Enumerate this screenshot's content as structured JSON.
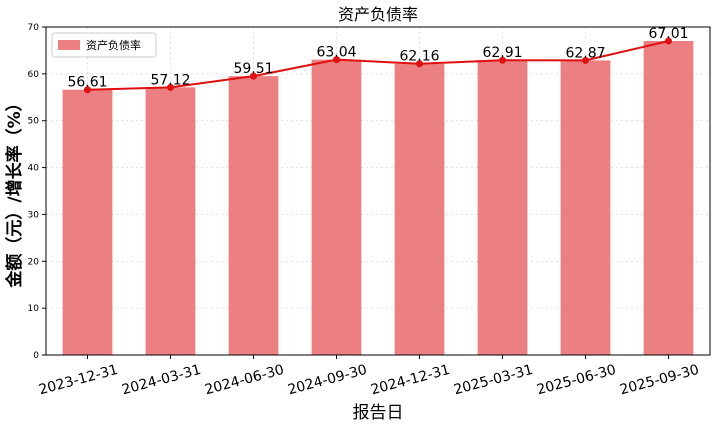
{
  "chart_data": {
    "type": "bar",
    "title": "资产负债率",
    "xlabel": "报告日",
    "ylabel": "金额（元）/增长率（%）",
    "categories": [
      "2023-12-31",
      "2024-03-31",
      "2024-06-30",
      "2024-09-30",
      "2024-12-31",
      "2025-03-31",
      "2025-06-30",
      "2025-09-30"
    ],
    "series": [
      {
        "name": "资产负债率",
        "kind": "bar",
        "values": [
          56.61,
          57.12,
          59.51,
          63.04,
          62.16,
          62.91,
          62.87,
          67.01
        ],
        "labels": [
          "56.61",
          "57.12",
          "59.51",
          "63.04",
          "62.16",
          "62.91",
          "62.87",
          "67.01"
        ],
        "color": "#e8696b"
      },
      {
        "kind": "line",
        "values": [
          56.61,
          57.12,
          59.51,
          63.04,
          62.16,
          62.91,
          62.87,
          67.01
        ],
        "color": "#e01010"
      }
    ],
    "ylim": [
      0,
      70
    ],
    "yticks": [
      0,
      10,
      20,
      30,
      40,
      50,
      60,
      70
    ],
    "grid": true,
    "legend": "top-left"
  }
}
